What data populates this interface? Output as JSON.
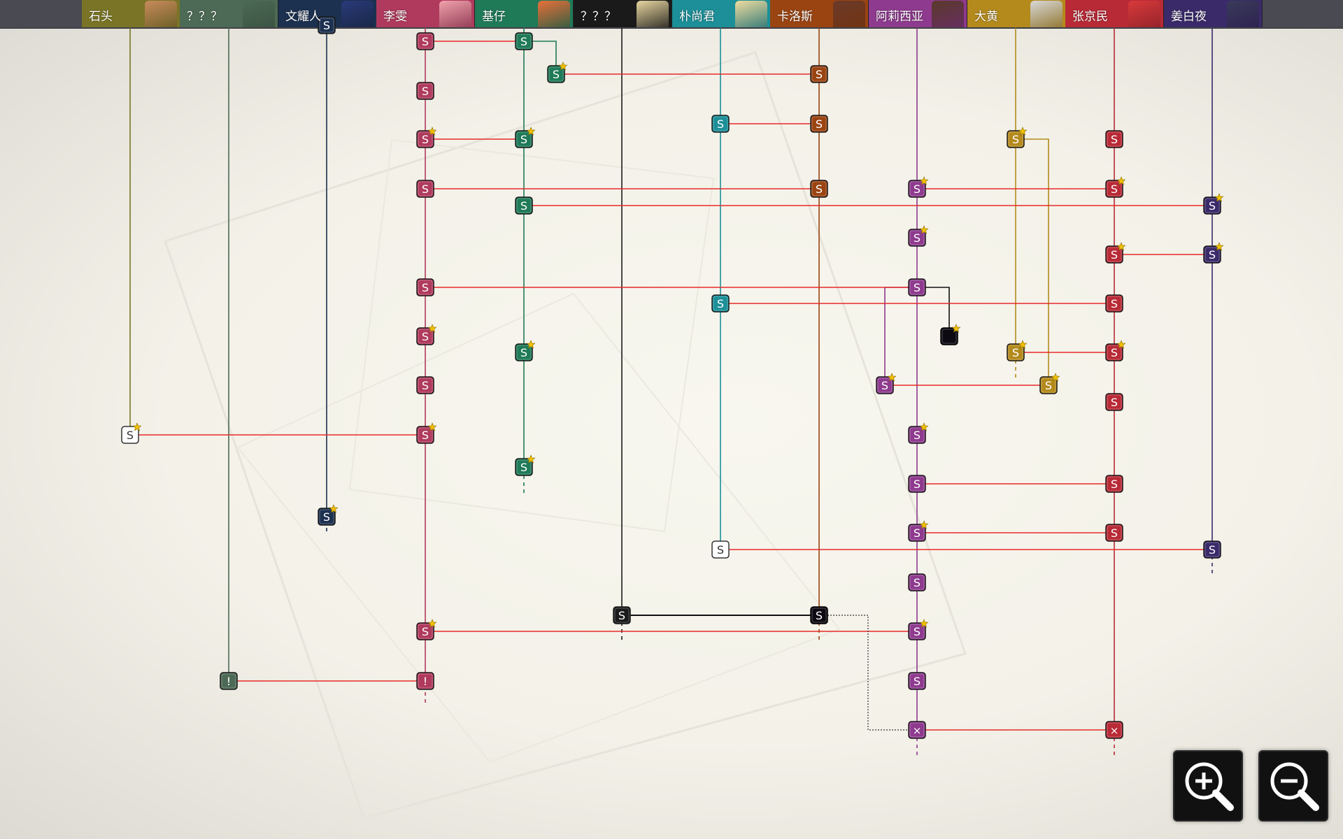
{
  "characters": [
    {
      "id": "shitou",
      "label": "石头",
      "color": "#7a7526",
      "portrait": "#c98b5c"
    },
    {
      "id": "unknown1",
      "label": "？？？",
      "color": "#4c6a55",
      "portrait": "#4c6a55"
    },
    {
      "id": "wenyaoren",
      "label": "文耀人",
      "color": "#1c3050",
      "portrait": "#2a3a7a"
    },
    {
      "id": "liwen",
      "label": "李雯",
      "color": "#b03a5e",
      "portrait": "#f0a2ac"
    },
    {
      "id": "jizai",
      "label": "基仔",
      "color": "#1f7a58",
      "portrait": "#e8703a"
    },
    {
      "id": "unknown2",
      "label": "？？？",
      "color": "#1a1a1a",
      "portrait": "#e8d6a0"
    },
    {
      "id": "piaoshangjun",
      "label": "朴尚君",
      "color": "#1c8f98",
      "portrait": "#f0dca0"
    },
    {
      "id": "kaluosi",
      "label": "卡洛斯",
      "color": "#9a4412",
      "portrait": "#6a3a2a"
    },
    {
      "id": "aliciya",
      "label": "阿莉西亚",
      "color": "#8e3a8e",
      "portrait": "#5a3a2a"
    },
    {
      "id": "dahuang",
      "label": "大黄",
      "color": "#b48a1c",
      "portrait": "#d8d8d8"
    },
    {
      "id": "zhangjingmin",
      "label": "张京民",
      "color": "#b82a36",
      "portrait": "#d83a3a"
    },
    {
      "id": "jiangbaiye",
      "label": "姜白夜",
      "color": "#3a2a6a",
      "portrait": "#3a3a5a"
    }
  ],
  "node_text": {
    "s": "S",
    "alert": "!",
    "cross": "×",
    "blank": ""
  },
  "controls": {
    "zoom_in": "zoom-in-icon",
    "zoom_out": "zoom-out-icon"
  },
  "colors": {
    "link": "#e82a2a",
    "star": "#f0c000"
  }
}
